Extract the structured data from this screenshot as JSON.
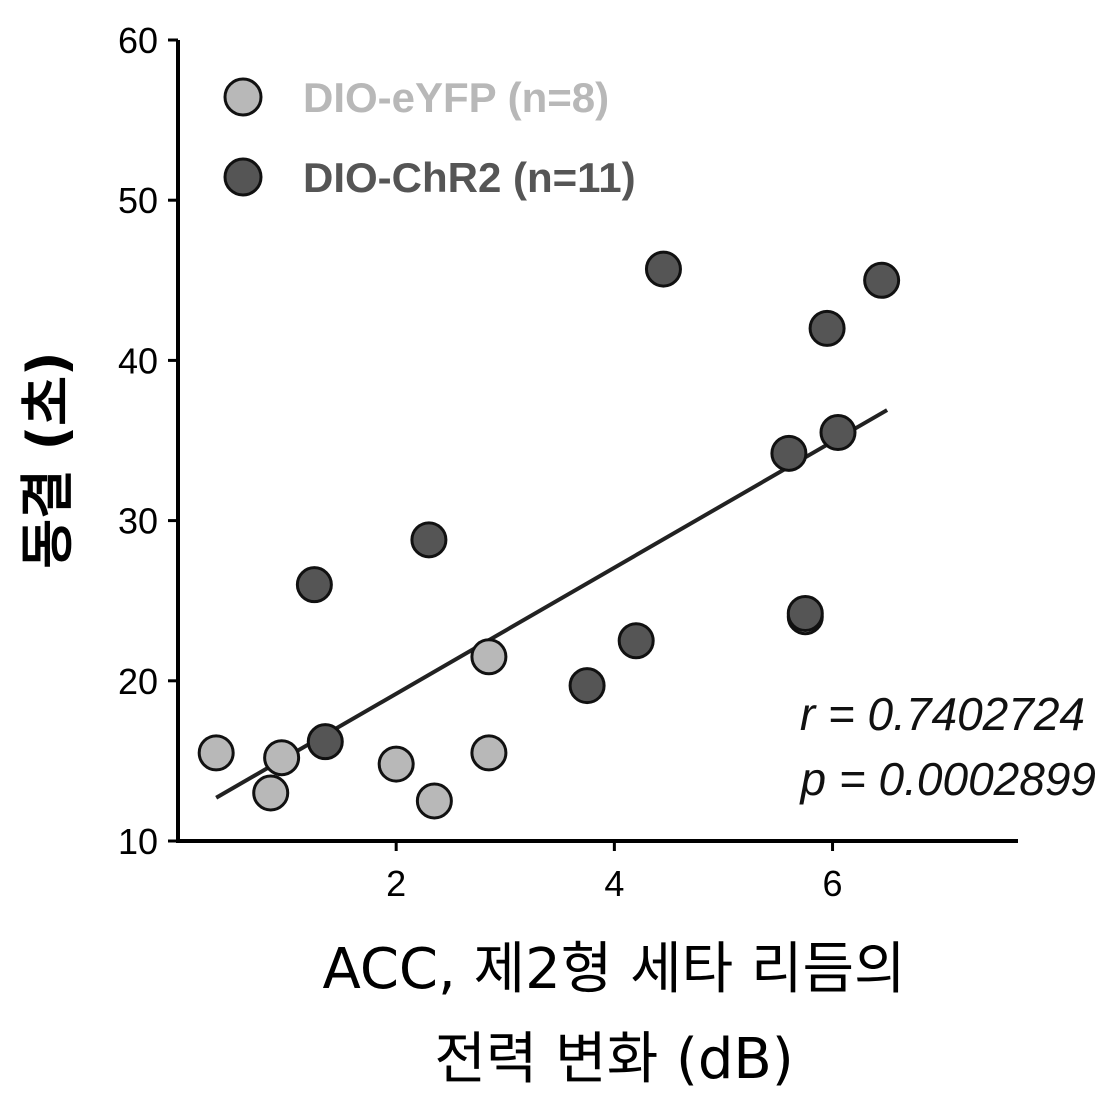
{
  "chart_data": {
    "type": "scatter",
    "xlabel_lines": [
      "ACC, 제2형 세타 리듬의",
      "전력 변화 (dB)"
    ],
    "ylabel": "동결 (초)",
    "xlim": [
      0.0,
      7.7
    ],
    "ylim": [
      10,
      60
    ],
    "xticks": [
      2,
      4,
      6
    ],
    "yticks": [
      10,
      20,
      30,
      40,
      50,
      60
    ],
    "grid": false,
    "legend_position": "top-left",
    "series": [
      {
        "name": "DIO-eYFP (n=8)",
        "color": "#b8b8b8",
        "points": [
          {
            "x": 0.35,
            "y": 15.5
          },
          {
            "x": 0.85,
            "y": 13.0
          },
          {
            "x": 0.95,
            "y": 15.2
          },
          {
            "x": 2.0,
            "y": 14.8
          },
          {
            "x": 2.35,
            "y": 12.5
          },
          {
            "x": 2.85,
            "y": 21.5
          },
          {
            "x": 2.85,
            "y": 15.5
          },
          {
            "x": 5.75,
            "y": 24.0
          }
        ]
      },
      {
        "name": "DIO-ChR2 (n=11)",
        "color": "#555555",
        "points": [
          {
            "x": 1.25,
            "y": 26.0
          },
          {
            "x": 1.35,
            "y": 16.2
          },
          {
            "x": 2.3,
            "y": 28.8
          },
          {
            "x": 3.75,
            "y": 19.7
          },
          {
            "x": 4.2,
            "y": 22.5
          },
          {
            "x": 4.45,
            "y": 45.7
          },
          {
            "x": 5.6,
            "y": 34.2
          },
          {
            "x": 5.75,
            "y": 24.2
          },
          {
            "x": 5.95,
            "y": 42.0
          },
          {
            "x": 6.05,
            "y": 35.5
          },
          {
            "x": 6.45,
            "y": 45.0
          }
        ]
      }
    ],
    "fit_line": {
      "x": [
        0.35,
        6.5
      ],
      "y": [
        12.7,
        36.9
      ]
    },
    "annotations": [
      "r = 0.7402724",
      "p = 0.0002899"
    ]
  }
}
